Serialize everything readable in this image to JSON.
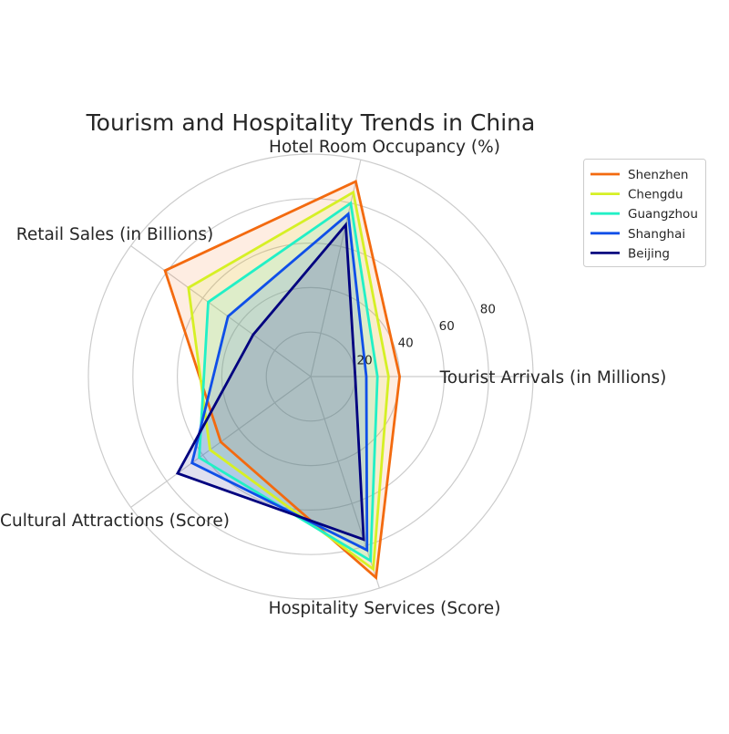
{
  "chart_data": {
    "type": "radar",
    "title": "Tourism and Hospitality Trends in China",
    "axes": [
      "Tourist Arrivals (in Millions)",
      "Hotel Room Occupancy (%)",
      "Retail Sales (in Billions)",
      "Cultural Attractions (Score)",
      "Hospitality Services (Score)"
    ],
    "rlim": [
      0,
      100
    ],
    "r_ticks": [
      20,
      40,
      60,
      80
    ],
    "grid": true,
    "legend_position": "top-right",
    "series": [
      {
        "name": "Shenzhen",
        "color": "#f36a0f",
        "values": [
          40,
          90,
          81,
          50,
          95
        ]
      },
      {
        "name": "Chengdu",
        "color": "#d6f025",
        "values": [
          35,
          85,
          68,
          56,
          91
        ]
      },
      {
        "name": "Guangzhou",
        "color": "#22f0c6",
        "values": [
          30,
          80,
          57,
          62,
          87
        ]
      },
      {
        "name": "Shanghai",
        "color": "#0f4fe8",
        "values": [
          25,
          75,
          46,
          66,
          82
        ]
      },
      {
        "name": "Beijing",
        "color": "#00007f",
        "values": [
          20,
          70,
          32,
          74,
          77
        ]
      }
    ]
  }
}
